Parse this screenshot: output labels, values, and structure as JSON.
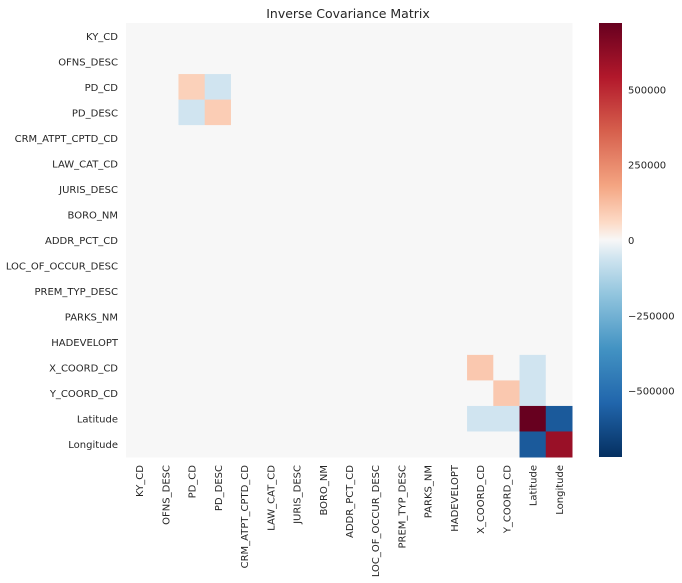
{
  "chart_data": {
    "type": "heatmap",
    "title": "Inverse Covariance Matrix",
    "rows": [
      "KY_CD",
      "OFNS_DESC",
      "PD_CD",
      "PD_DESC",
      "CRM_ATPT_CPTD_CD",
      "LAW_CAT_CD",
      "JURIS_DESC",
      "BORO_NM",
      "ADDR_PCT_CD",
      "LOC_OF_OCCUR_DESC",
      "PREM_TYP_DESC",
      "PARKS_NM",
      "HADEVELOPT",
      "X_COORD_CD",
      "Y_COORD_CD",
      "Latitude",
      "Longitude"
    ],
    "columns": [
      "KY_CD",
      "OFNS_DESC",
      "PD_CD",
      "PD_DESC",
      "CRM_ATPT_CPTD_CD",
      "LAW_CAT_CD",
      "JURIS_DESC",
      "BORO_NM",
      "ADDR_PCT_CD",
      "LOC_OF_OCCUR_DESC",
      "PREM_TYP_DESC",
      "PARKS_NM",
      "HADEVELOPT",
      "X_COORD_CD",
      "Y_COORD_CD",
      "Latitude",
      "Longitude"
    ],
    "values": [
      [
        0,
        0,
        0,
        0,
        0,
        0,
        0,
        0,
        0,
        0,
        0,
        0,
        0,
        0,
        0,
        0,
        0
      ],
      [
        0,
        0,
        0,
        0,
        0,
        0,
        0,
        0,
        0,
        0,
        0,
        0,
        0,
        0,
        0,
        0,
        0
      ],
      [
        0,
        0,
        80000,
        -60000,
        0,
        0,
        0,
        0,
        0,
        0,
        0,
        0,
        0,
        0,
        0,
        0,
        0
      ],
      [
        0,
        0,
        -60000,
        90000,
        0,
        0,
        0,
        0,
        0,
        0,
        0,
        0,
        0,
        0,
        0,
        0,
        0
      ],
      [
        0,
        0,
        0,
        0,
        0,
        0,
        0,
        0,
        0,
        0,
        0,
        0,
        0,
        0,
        0,
        0,
        0
      ],
      [
        0,
        0,
        0,
        0,
        0,
        0,
        0,
        0,
        0,
        0,
        0,
        0,
        0,
        0,
        0,
        0,
        0
      ],
      [
        0,
        0,
        0,
        0,
        0,
        0,
        0,
        0,
        0,
        0,
        0,
        0,
        0,
        0,
        0,
        0,
        0
      ],
      [
        0,
        0,
        0,
        0,
        0,
        0,
        0,
        0,
        0,
        0,
        0,
        0,
        0,
        0,
        0,
        0,
        0
      ],
      [
        0,
        0,
        0,
        0,
        0,
        0,
        0,
        0,
        0,
        0,
        0,
        0,
        0,
        0,
        0,
        0,
        0
      ],
      [
        0,
        0,
        0,
        0,
        0,
        0,
        0,
        0,
        0,
        0,
        0,
        0,
        0,
        0,
        0,
        0,
        0
      ],
      [
        0,
        0,
        0,
        0,
        0,
        0,
        0,
        0,
        0,
        0,
        0,
        0,
        0,
        0,
        0,
        0,
        0
      ],
      [
        0,
        0,
        0,
        0,
        0,
        0,
        0,
        0,
        0,
        0,
        0,
        0,
        0,
        0,
        0,
        0,
        0
      ],
      [
        0,
        0,
        0,
        0,
        0,
        0,
        0,
        0,
        0,
        0,
        0,
        0,
        0,
        0,
        0,
        0,
        0
      ],
      [
        0,
        0,
        0,
        0,
        0,
        0,
        0,
        0,
        0,
        0,
        0,
        0,
        0,
        100000,
        0,
        -60000,
        0
      ],
      [
        0,
        0,
        0,
        0,
        0,
        0,
        0,
        0,
        0,
        0,
        0,
        0,
        0,
        0,
        100000,
        -60000,
        0
      ],
      [
        0,
        0,
        0,
        0,
        0,
        0,
        0,
        0,
        0,
        0,
        0,
        0,
        0,
        -60000,
        -60000,
        720000,
        -580000
      ],
      [
        0,
        0,
        0,
        0,
        0,
        0,
        0,
        0,
        0,
        0,
        0,
        0,
        0,
        0,
        0,
        -580000,
        600000
      ]
    ],
    "colorbar": {
      "colormap": "RdBu_r",
      "vmin": -720000,
      "vmax": 720000,
      "ticks": [
        500000,
        250000,
        0,
        -250000,
        -500000
      ],
      "tick_labels": [
        "500000",
        "250000",
        "0",
        "−250000",
        "−500000"
      ]
    }
  }
}
